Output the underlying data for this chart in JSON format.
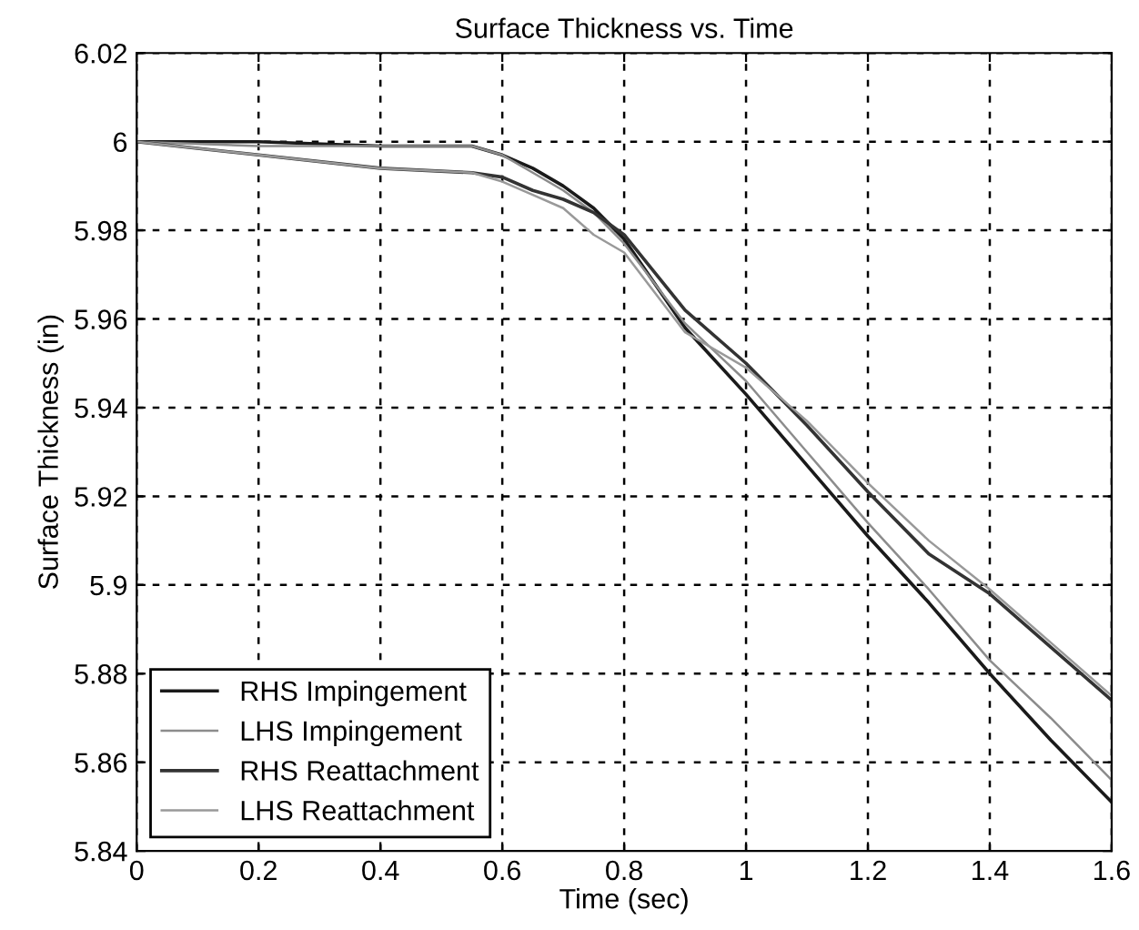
{
  "chart_data": {
    "type": "line",
    "title": "Surface Thickness vs. Time",
    "xlabel": "Time (sec)",
    "ylabel": "Surface Thickness (in)",
    "xlim": [
      0,
      1.6
    ],
    "ylim": [
      5.84,
      6.02
    ],
    "xticks": [
      0,
      0.2,
      0.4,
      0.6,
      0.8,
      1,
      1.2,
      1.4,
      1.6
    ],
    "yticks": [
      5.84,
      5.86,
      5.88,
      5.9,
      5.92,
      5.94,
      5.96,
      5.98,
      6,
      6.02
    ],
    "grid": true,
    "legend": "bottom left",
    "line_style": "solid",
    "x": [
      0,
      0.2,
      0.4,
      0.55,
      0.6,
      0.65,
      0.7,
      0.75,
      0.8,
      0.9,
      1.0,
      1.1,
      1.2,
      1.3,
      1.4,
      1.5,
      1.6
    ],
    "series": [
      {
        "name": "RHS Impingement",
        "color": "#1a1a1a",
        "values": [
          6,
          6,
          5.999,
          5.999,
          5.997,
          5.994,
          5.99,
          5.985,
          5.978,
          5.958,
          5.943,
          5.927,
          5.911,
          5.896,
          5.88,
          5.865,
          5.851
        ]
      },
      {
        "name": "LHS Impingement",
        "color": "#8c8c8c",
        "values": [
          6,
          5.999,
          5.999,
          5.999,
          5.997,
          5.993,
          5.989,
          5.984,
          5.977,
          5.959,
          5.946,
          5.93,
          5.914,
          5.899,
          5.883,
          5.87,
          5.856
        ]
      },
      {
        "name": "RHS Reattachment",
        "color": "#333333",
        "values": [
          6,
          5.997,
          5.994,
          5.993,
          5.992,
          5.989,
          5.987,
          5.984,
          5.979,
          5.962,
          5.95,
          5.936,
          5.921,
          5.907,
          5.898,
          5.886,
          5.874
        ]
      },
      {
        "name": "LHS Reattachment",
        "color": "#999999",
        "values": [
          6,
          5.997,
          5.994,
          5.993,
          5.991,
          5.988,
          5.985,
          5.979,
          5.975,
          5.957,
          5.949,
          5.937,
          5.923,
          5.91,
          5.899,
          5.887,
          5.875
        ]
      }
    ]
  }
}
